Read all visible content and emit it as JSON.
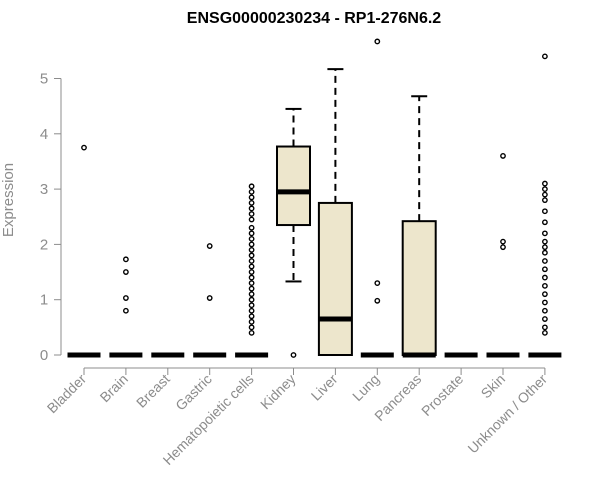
{
  "chart_data": {
    "type": "box",
    "title": "ENSG00000230234 - RP1-276N6.2",
    "xlabel": "",
    "ylabel": "Expression",
    "ylim": [
      0,
      5.75
    ],
    "yticks": [
      0,
      1,
      2,
      3,
      4,
      5
    ],
    "grid": false,
    "colors": {
      "box_fill": "#ede6cc",
      "axis": "#8c8c8c",
      "text": "#8c8c8c"
    },
    "categories": [
      "Bladder",
      "Brain",
      "Breast",
      "Gastric",
      "Hematopoietic cells",
      "Kidney",
      "Liver",
      "Lung",
      "Pancreas",
      "Prostate",
      "Skin",
      "Unknown / Other"
    ],
    "boxes": [
      {
        "category": "Bladder",
        "q1": 0,
        "median": 0,
        "q3": 0,
        "whisker_low": 0,
        "whisker_high": 0,
        "outliers": [
          3.75
        ]
      },
      {
        "category": "Brain",
        "q1": 0,
        "median": 0,
        "q3": 0,
        "whisker_low": 0,
        "whisker_high": 0,
        "outliers": [
          1.73,
          1.5,
          1.03,
          0.8
        ]
      },
      {
        "category": "Breast",
        "q1": 0,
        "median": 0,
        "q3": 0,
        "whisker_low": 0,
        "whisker_high": 0,
        "outliers": []
      },
      {
        "category": "Gastric",
        "q1": 0,
        "median": 0,
        "q3": 0,
        "whisker_low": 0,
        "whisker_high": 0,
        "outliers": [
          1.97,
          1.03
        ]
      },
      {
        "category": "Hematopoietic cells",
        "q1": 0,
        "median": 0,
        "q3": 0,
        "whisker_low": 0,
        "whisker_high": 0,
        "outliers": [
          3.05,
          2.95,
          2.85,
          2.75,
          2.65,
          2.55,
          2.45,
          2.3,
          2.2,
          2.1,
          2.0,
          1.9,
          1.8,
          1.7,
          1.6,
          1.5,
          1.4,
          1.3,
          1.2,
          1.1,
          1.0,
          0.9,
          0.8,
          0.7,
          0.6,
          0.5,
          0.4
        ]
      },
      {
        "category": "Kidney",
        "q1": 2.35,
        "median": 2.95,
        "q3": 3.77,
        "whisker_low": 1.33,
        "whisker_high": 4.45,
        "outliers": [
          0
        ]
      },
      {
        "category": "Liver",
        "q1": 0,
        "median": 0.65,
        "q3": 2.75,
        "whisker_low": 0,
        "whisker_high": 5.17,
        "outliers": []
      },
      {
        "category": "Lung",
        "q1": 0,
        "median": 0,
        "q3": 0,
        "whisker_low": 0,
        "whisker_high": 0,
        "outliers": [
          5.67,
          1.3,
          0.98
        ]
      },
      {
        "category": "Pancreas",
        "q1": 0,
        "median": 0,
        "q3": 2.42,
        "whisker_low": 0,
        "whisker_high": 4.68,
        "outliers": []
      },
      {
        "category": "Prostate",
        "q1": 0,
        "median": 0,
        "q3": 0,
        "whisker_low": 0,
        "whisker_high": 0,
        "outliers": []
      },
      {
        "category": "Skin",
        "q1": 0,
        "median": 0,
        "q3": 0,
        "whisker_low": 0,
        "whisker_high": 0,
        "outliers": [
          3.6,
          2.05,
          1.95
        ]
      },
      {
        "category": "Unknown / Other",
        "q1": 0,
        "median": 0,
        "q3": 0,
        "whisker_low": 0,
        "whisker_high": 0,
        "outliers": [
          5.4,
          3.1,
          3.0,
          2.9,
          2.8,
          2.6,
          2.4,
          2.2,
          2.05,
          1.95,
          1.85,
          1.7,
          1.55,
          1.4,
          1.25,
          1.1,
          0.95,
          0.8,
          0.65,
          0.5,
          0.4
        ]
      }
    ]
  }
}
